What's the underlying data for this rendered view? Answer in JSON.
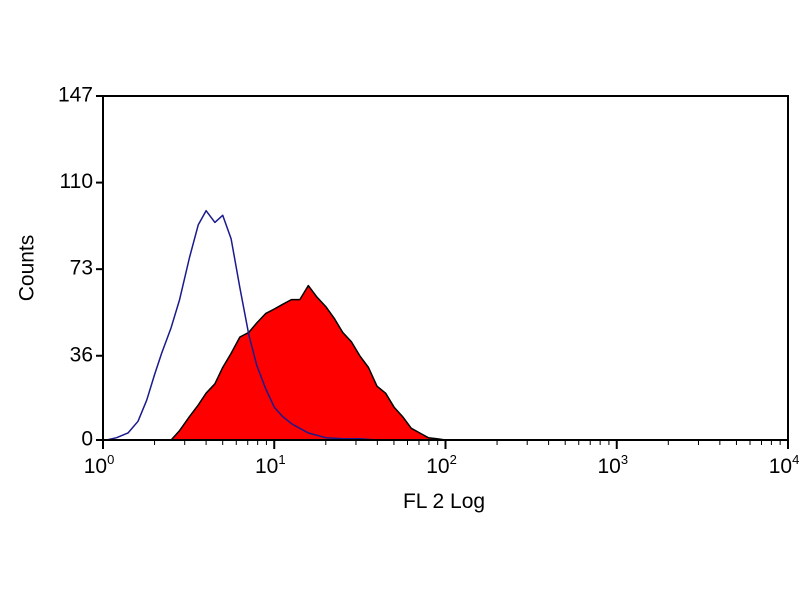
{
  "chart_data": {
    "type": "area",
    "title": "",
    "xlabel": "FL 2 Log",
    "ylabel": "Counts",
    "x_scale": "log",
    "xlim": [
      1,
      10000
    ],
    "ylim": [
      0,
      147
    ],
    "grid": false,
    "legend": "none",
    "x_ticks": [
      {
        "value": 1,
        "base": "10",
        "exp": "0"
      },
      {
        "value": 10,
        "base": "10",
        "exp": "1"
      },
      {
        "value": 100,
        "base": "10",
        "exp": "2"
      },
      {
        "value": 1000,
        "base": "10",
        "exp": "3"
      },
      {
        "value": 10000,
        "base": "10",
        "exp": "4"
      }
    ],
    "y_ticks": [
      0,
      36,
      73,
      110,
      147
    ],
    "series": [
      {
        "style": "filled",
        "color": "#ff0000",
        "outline_color": "#000000",
        "x": [
          2.5,
          2.8,
          3.2,
          3.6,
          4.0,
          4.5,
          5.0,
          5.6,
          6.3,
          7.1,
          7.9,
          8.9,
          10.0,
          11.2,
          12.6,
          14.1,
          15.8,
          17.8,
          20.0,
          22.4,
          25.1,
          28.2,
          31.6,
          35.5,
          39.8,
          44.7,
          50.1,
          56.2,
          63.1,
          70.8,
          79.4,
          89.1,
          100,
          300,
          1000,
          3000,
          10000
        ],
        "y": [
          0,
          4,
          10,
          15,
          20,
          24,
          31,
          37,
          44,
          46,
          50,
          54,
          56,
          58,
          60,
          60,
          66,
          61,
          57,
          52,
          46,
          42,
          36,
          31,
          23,
          20,
          14,
          10,
          5,
          3,
          1,
          0.5,
          0,
          0,
          0,
          0,
          0
        ]
      },
      {
        "style": "line",
        "color": "#1a1a8c",
        "x": [
          1.05,
          1.2,
          1.4,
          1.6,
          1.8,
          2.0,
          2.2,
          2.5,
          2.8,
          3.2,
          3.6,
          4.0,
          4.5,
          5.0,
          5.6,
          6.3,
          7.1,
          7.9,
          8.9,
          10.0,
          11.2,
          12.6,
          14.1,
          15.8,
          17.8,
          20.0,
          25.1,
          31.6,
          39.8,
          50.1,
          63.1
        ],
        "y": [
          0,
          1,
          3,
          8,
          17,
          28,
          37,
          48,
          60,
          78,
          92,
          98,
          93,
          96,
          86,
          65,
          45,
          32,
          22,
          14,
          10,
          7,
          5,
          3,
          2,
          1,
          0.5,
          0.5,
          0,
          0,
          0
        ]
      }
    ]
  }
}
